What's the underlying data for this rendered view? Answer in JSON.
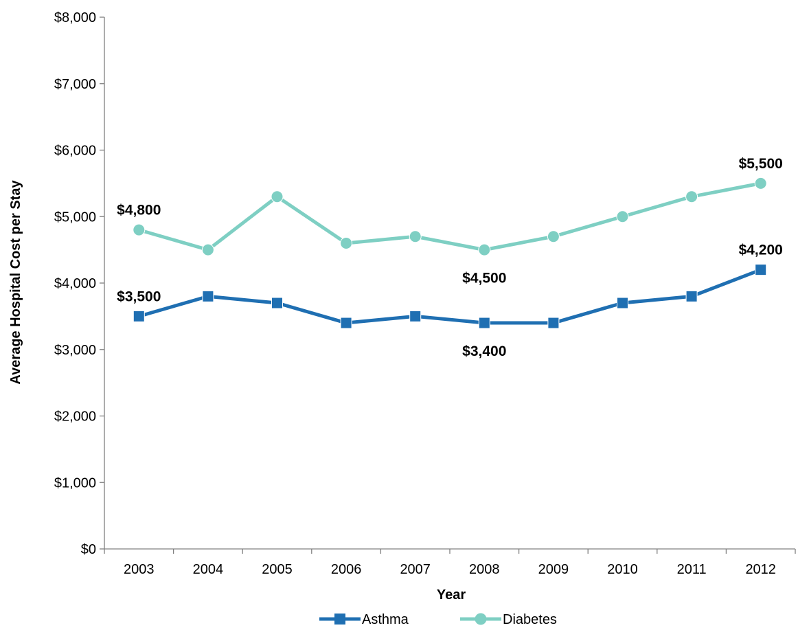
{
  "chart_data": {
    "type": "line",
    "title": "",
    "xlabel": "Year",
    "ylabel": "Average Hospital  Cost per Stay",
    "categories": [
      "2003",
      "2004",
      "2005",
      "2006",
      "2007",
      "2008",
      "2009",
      "2010",
      "2011",
      "2012"
    ],
    "ylim": [
      0,
      8000
    ],
    "y_ticks": [
      0,
      1000,
      2000,
      3000,
      4000,
      5000,
      6000,
      7000,
      8000
    ],
    "y_tick_labels": [
      "$0",
      "$1,000",
      "$2,000",
      "$3,000",
      "$4,000",
      "$5,000",
      "$6,000",
      "$7,000",
      "$8,000"
    ],
    "grid": false,
    "legend_position": "bottom",
    "series": [
      {
        "name": "Asthma",
        "marker": "square",
        "color": "#1f6fb2",
        "values": [
          3500,
          3800,
          3700,
          3400,
          3500,
          3400,
          3400,
          3700,
          3800,
          4200
        ]
      },
      {
        "name": "Diabetes",
        "marker": "circle",
        "color": "#7ecfc3",
        "values": [
          4800,
          4500,
          5300,
          4600,
          4700,
          4500,
          4700,
          5000,
          5300,
          5500
        ]
      }
    ],
    "annotations": [
      {
        "series": 1,
        "index": 0,
        "text": "$4,800",
        "placement": "above"
      },
      {
        "series": 1,
        "index": 5,
        "text": "$4,500",
        "placement": "below"
      },
      {
        "series": 1,
        "index": 9,
        "text": "$5,500",
        "placement": "above"
      },
      {
        "series": 0,
        "index": 0,
        "text": "$3,500",
        "placement": "above"
      },
      {
        "series": 0,
        "index": 5,
        "text": "$3,400",
        "placement": "below"
      },
      {
        "series": 0,
        "index": 9,
        "text": "$4,200",
        "placement": "above"
      }
    ]
  }
}
